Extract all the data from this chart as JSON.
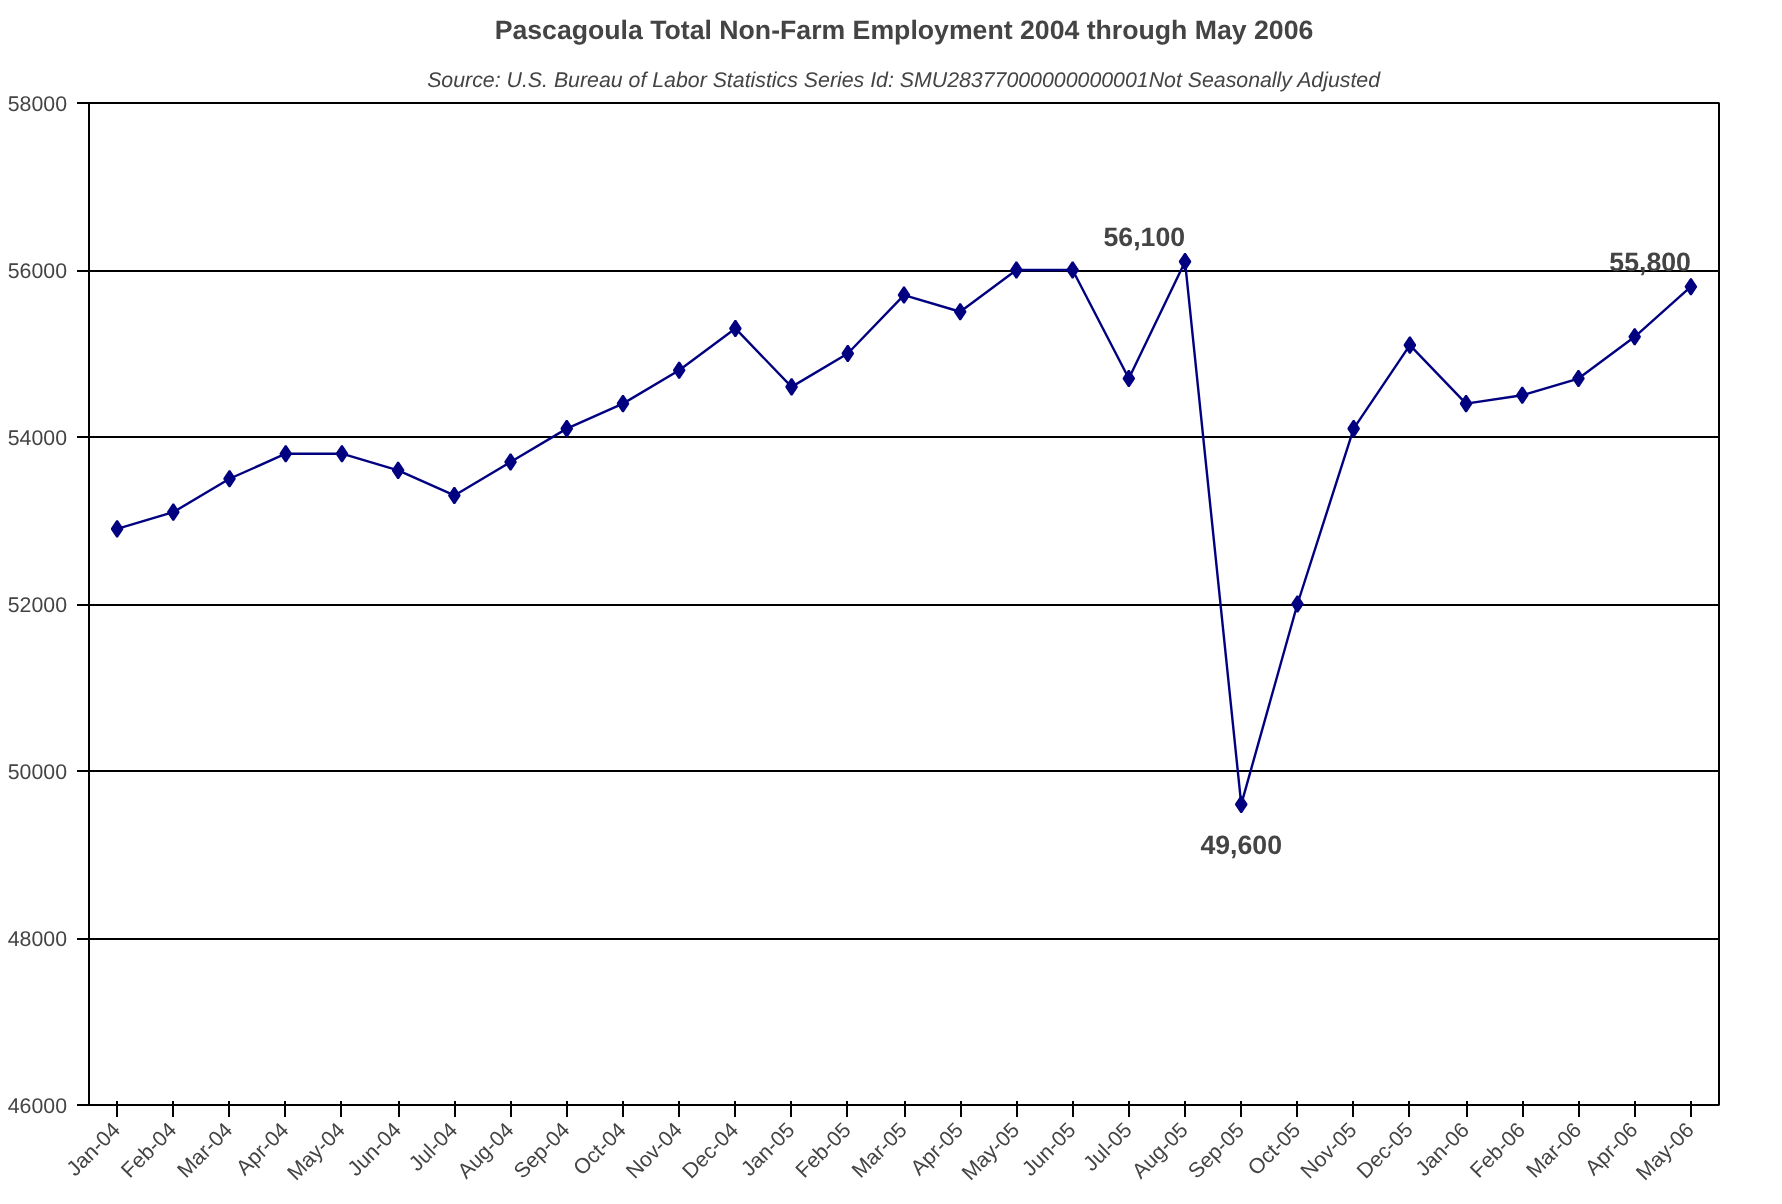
{
  "chart_data": {
    "type": "line",
    "title": "Pascagoula Total Non-Farm Employment 2004 through May 2006",
    "subtitle": "Source: U.S. Bureau of Labor Statistics Series Id: SMU28377000000000001Not Seasonally Adjusted",
    "categories": [
      "Jan-04",
      "Feb-04",
      "Mar-04",
      "Apr-04",
      "May-04",
      "Jun-04",
      "Jul-04",
      "Aug-04",
      "Sep-04",
      "Oct-04",
      "Nov-04",
      "Dec-04",
      "Jan-05",
      "Feb-05",
      "Mar-05",
      "Apr-05",
      "May-05",
      "Jun-05",
      "Jul-05",
      "Aug-05",
      "Sep-05",
      "Oct-05",
      "Nov-05",
      "Dec-05",
      "Jan-06",
      "Feb-06",
      "Mar-06",
      "Apr-06",
      "May-06"
    ],
    "series": [
      {
        "color": "#000080",
        "values": [
          52900,
          53100,
          53500,
          53800,
          53800,
          53600,
          53300,
          53700,
          54100,
          54400,
          54800,
          55300,
          54600,
          55000,
          55700,
          55500,
          56000,
          56000,
          54700,
          56100,
          49600,
          52000,
          54100,
          55100,
          54400,
          54500,
          54700,
          55200,
          55800
        ],
        "value_labels": [
          null,
          null,
          null,
          null,
          null,
          null,
          null,
          null,
          null,
          null,
          null,
          null,
          null,
          null,
          null,
          null,
          null,
          null,
          null,
          "56,100",
          "49,600",
          null,
          null,
          null,
          null,
          null,
          null,
          null,
          "55,800"
        ]
      }
    ],
    "ylim": [
      46000,
      58000
    ],
    "yticks": [
      46000,
      48000,
      50000,
      52000,
      54000,
      56000,
      58000
    ],
    "grid": "y",
    "marker": "diamond",
    "line_style": "solid"
  }
}
